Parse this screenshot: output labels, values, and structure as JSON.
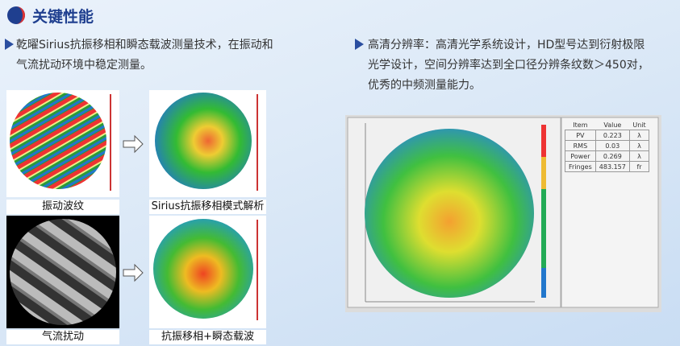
{
  "header": {
    "title": "关键性能"
  },
  "left_bullet": {
    "lines": [
      "乾曜Sirius抗振移相和瞬态载波测量技术，在振动和",
      "气流扰动环境中稳定测量。"
    ]
  },
  "right_bullet": {
    "lines": [
      "高清分辨率：高清光学系统设计，HD型号达到衍射极限",
      "光学设计，空间分辨率达到全口径分辨条纹数＞450对，",
      "优秀的中频测量能力。"
    ]
  },
  "figures": {
    "captions": [
      "振动波纹",
      "Sirius抗振移相模式解析",
      "气流扰动",
      "抗振移相+瞬态载波"
    ]
  },
  "table": {
    "header": [
      "Item",
      "Value",
      "Unit"
    ],
    "rows": [
      [
        "PV",
        "0.223",
        "λ"
      ],
      [
        "RMS",
        "0.03",
        "λ"
      ],
      [
        "Power",
        "0.269",
        "λ"
      ],
      [
        "Fringes",
        "483.157",
        "fr"
      ]
    ]
  }
}
